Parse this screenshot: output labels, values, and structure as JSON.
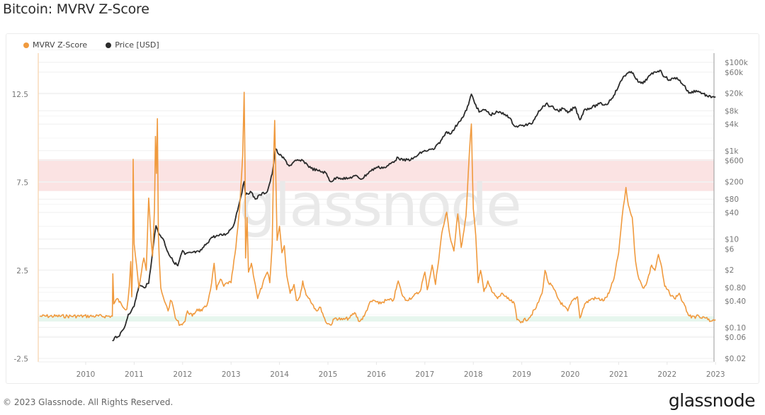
{
  "page": {
    "title": "Bitcoin: MVRV Z-Score",
    "copyright": "© 2023 Glassnode. All Rights Reserved.",
    "logo": "glassnode",
    "watermark": "glassnode"
  },
  "legend": [
    {
      "label": "MVRV Z-Score",
      "color": "#f09a3e"
    },
    {
      "label": "Price [USD]",
      "color": "#2b2b2b"
    }
  ],
  "chart_data": {
    "type": "line",
    "title": "Bitcoin: MVRV Z-Score",
    "xlabel": "",
    "ylabel_left": "MVRV Z-Score",
    "ylabel_right": "Price [USD] (log scale)",
    "x_ticks": [
      "2010",
      "2011",
      "2012",
      "2013",
      "2014",
      "2015",
      "2016",
      "2017",
      "2018",
      "2019",
      "2020",
      "2021",
      "2022",
      "2023"
    ],
    "y_left_ticks": [
      "12.5",
      "7.5",
      "2.5",
      "-2.5"
    ],
    "y_left_range": [
      -2.5,
      15
    ],
    "y_right_ticks": [
      "$100k",
      "$60k",
      "$20k",
      "$8k",
      "$4k",
      "$1k",
      "$600",
      "$200",
      "$80",
      "$40",
      "$10",
      "$6",
      "$2",
      "$0.80",
      "$0.40",
      "$0.10",
      "$0.06",
      "$0.02"
    ],
    "y_right_range": [
      0.02,
      100000
    ],
    "grid": true,
    "legend_position": "top-left",
    "bands": [
      {
        "name": "overvalued-zone",
        "z_from": 7.0,
        "z_to": 8.8,
        "color": "#fbe3e3"
      },
      {
        "name": "undervalued-zone",
        "z_from": -0.4,
        "z_to": -0.1,
        "color": "#e6f6ee"
      }
    ],
    "series": [
      {
        "name": "MVRV Z-Score",
        "axis": "left",
        "color": "#f09a3e",
        "points": [
          [
            2009.05,
            -0.1
          ],
          [
            2010.55,
            -0.1
          ],
          [
            2010.56,
            2.3
          ],
          [
            2010.58,
            0.6
          ],
          [
            2010.65,
            0.9
          ],
          [
            2010.75,
            0.5
          ],
          [
            2010.85,
            0.3
          ],
          [
            2010.9,
            1.6
          ],
          [
            2010.93,
            3.0
          ],
          [
            2010.95,
            1.0
          ],
          [
            2010.97,
            3.0
          ],
          [
            2010.98,
            8.8
          ],
          [
            2011.0,
            4.0
          ],
          [
            2011.05,
            2.8
          ],
          [
            2011.1,
            1.5
          ],
          [
            2011.15,
            2.4
          ],
          [
            2011.2,
            3.2
          ],
          [
            2011.25,
            2.5
          ],
          [
            2011.3,
            6.6
          ],
          [
            2011.35,
            4.2
          ],
          [
            2011.38,
            3.3
          ],
          [
            2011.42,
            6.0
          ],
          [
            2011.44,
            10.1
          ],
          [
            2011.46,
            8.0
          ],
          [
            2011.48,
            11.1
          ],
          [
            2011.5,
            4.5
          ],
          [
            2011.52,
            3.0
          ],
          [
            2011.55,
            1.5
          ],
          [
            2011.6,
            1.0
          ],
          [
            2011.65,
            0.6
          ],
          [
            2011.7,
            0.2
          ],
          [
            2011.75,
            0.8
          ],
          [
            2011.8,
            0.5
          ],
          [
            2011.85,
            -0.2
          ],
          [
            2011.95,
            -0.6
          ],
          [
            2012.05,
            -0.4
          ],
          [
            2012.1,
            0.2
          ],
          [
            2012.2,
            -0.1
          ],
          [
            2012.3,
            0.3
          ],
          [
            2012.4,
            0.2
          ],
          [
            2012.5,
            0.5
          ],
          [
            2012.55,
            1.1
          ],
          [
            2012.6,
            1.8
          ],
          [
            2012.65,
            2.9
          ],
          [
            2012.7,
            1.4
          ],
          [
            2012.78,
            2.0
          ],
          [
            2012.85,
            1.6
          ],
          [
            2012.92,
            1.8
          ],
          [
            2013.0,
            1.8
          ],
          [
            2013.1,
            3.8
          ],
          [
            2013.18,
            6.1
          ],
          [
            2013.24,
            9.0
          ],
          [
            2013.27,
            12.6
          ],
          [
            2013.29,
            8.0
          ],
          [
            2013.3,
            3.2
          ],
          [
            2013.33,
            5.5
          ],
          [
            2013.36,
            2.4
          ],
          [
            2013.42,
            2.9
          ],
          [
            2013.5,
            1.7
          ],
          [
            2013.55,
            0.9
          ],
          [
            2013.65,
            1.7
          ],
          [
            2013.75,
            2.4
          ],
          [
            2013.8,
            1.8
          ],
          [
            2013.85,
            4.0
          ],
          [
            2013.88,
            9.0
          ],
          [
            2013.9,
            11.0
          ],
          [
            2013.93,
            7.0
          ],
          [
            2013.95,
            4.2
          ],
          [
            2014.0,
            5.0
          ],
          [
            2014.05,
            3.5
          ],
          [
            2014.1,
            3.9
          ],
          [
            2014.15,
            2.2
          ],
          [
            2014.22,
            1.2
          ],
          [
            2014.3,
            1.7
          ],
          [
            2014.35,
            0.8
          ],
          [
            2014.42,
            1.0
          ],
          [
            2014.48,
            1.9
          ],
          [
            2014.55,
            1.1
          ],
          [
            2014.62,
            0.9
          ],
          [
            2014.7,
            0.5
          ],
          [
            2014.78,
            0.2
          ],
          [
            2014.85,
            0.4
          ],
          [
            2014.95,
            -0.4
          ],
          [
            2015.05,
            -0.6
          ],
          [
            2015.15,
            -0.2
          ],
          [
            2015.3,
            -0.3
          ],
          [
            2015.45,
            -0.2
          ],
          [
            2015.55,
            0.1
          ],
          [
            2015.65,
            -0.4
          ],
          [
            2015.75,
            -0.1
          ],
          [
            2015.85,
            0.6
          ],
          [
            2015.95,
            0.8
          ],
          [
            2016.05,
            0.6
          ],
          [
            2016.2,
            0.8
          ],
          [
            2016.35,
            0.8
          ],
          [
            2016.45,
            1.9
          ],
          [
            2016.52,
            1.2
          ],
          [
            2016.6,
            0.8
          ],
          [
            2016.75,
            1.0
          ],
          [
            2016.9,
            1.3
          ],
          [
            2017.0,
            2.4
          ],
          [
            2017.05,
            1.4
          ],
          [
            2017.15,
            2.8
          ],
          [
            2017.22,
            1.7
          ],
          [
            2017.35,
            4.6
          ],
          [
            2017.45,
            5.8
          ],
          [
            2017.52,
            4.4
          ],
          [
            2017.6,
            3.6
          ],
          [
            2017.68,
            5.7
          ],
          [
            2017.75,
            3.8
          ],
          [
            2017.85,
            5.6
          ],
          [
            2017.92,
            9.2
          ],
          [
            2017.96,
            10.8
          ],
          [
            2018.0,
            6.0
          ],
          [
            2018.05,
            4.5
          ],
          [
            2018.1,
            1.8
          ],
          [
            2018.15,
            2.5
          ],
          [
            2018.22,
            1.3
          ],
          [
            2018.3,
            1.9
          ],
          [
            2018.38,
            1.3
          ],
          [
            2018.5,
            0.9
          ],
          [
            2018.6,
            1.2
          ],
          [
            2018.7,
            0.9
          ],
          [
            2018.85,
            0.6
          ],
          [
            2018.9,
            -0.3
          ],
          [
            2019.0,
            -0.4
          ],
          [
            2019.15,
            -0.2
          ],
          [
            2019.3,
            0.4
          ],
          [
            2019.42,
            1.2
          ],
          [
            2019.48,
            2.5
          ],
          [
            2019.55,
            1.8
          ],
          [
            2019.65,
            1.5
          ],
          [
            2019.75,
            0.9
          ],
          [
            2019.85,
            0.5
          ],
          [
            2019.95,
            0.2
          ],
          [
            2020.05,
            0.8
          ],
          [
            2020.15,
            1.0
          ],
          [
            2020.2,
            -0.2
          ],
          [
            2020.3,
            0.6
          ],
          [
            2020.45,
            0.9
          ],
          [
            2020.55,
            0.9
          ],
          [
            2020.7,
            0.8
          ],
          [
            2020.8,
            1.2
          ],
          [
            2020.9,
            2.0
          ],
          [
            2021.0,
            3.5
          ],
          [
            2021.07,
            5.5
          ],
          [
            2021.12,
            6.5
          ],
          [
            2021.15,
            7.2
          ],
          [
            2021.2,
            6.2
          ],
          [
            2021.28,
            5.5
          ],
          [
            2021.35,
            3.0
          ],
          [
            2021.42,
            2.0
          ],
          [
            2021.5,
            1.5
          ],
          [
            2021.58,
            1.8
          ],
          [
            2021.68,
            2.8
          ],
          [
            2021.75,
            2.5
          ],
          [
            2021.82,
            3.4
          ],
          [
            2021.87,
            2.9
          ],
          [
            2021.95,
            1.6
          ],
          [
            2022.05,
            1.2
          ],
          [
            2022.15,
            0.9
          ],
          [
            2022.25,
            1.2
          ],
          [
            2022.32,
            0.7
          ],
          [
            2022.42,
            0.1
          ],
          [
            2022.5,
            -0.2
          ],
          [
            2022.6,
            -0.1
          ],
          [
            2022.7,
            -0.2
          ],
          [
            2022.8,
            -0.2
          ],
          [
            2022.88,
            -0.4
          ],
          [
            2022.95,
            -0.3
          ],
          [
            2023.0,
            -0.3
          ]
        ]
      },
      {
        "name": "Price [USD]",
        "axis": "right",
        "color": "#2b2b2b",
        "points": [
          [
            2010.55,
            0.05
          ],
          [
            2010.6,
            0.06
          ],
          [
            2010.7,
            0.065
          ],
          [
            2010.8,
            0.1
          ],
          [
            2010.88,
            0.2
          ],
          [
            2010.95,
            0.25
          ],
          [
            2011.0,
            0.3
          ],
          [
            2011.1,
            0.9
          ],
          [
            2011.2,
            0.8
          ],
          [
            2011.3,
            1.0
          ],
          [
            2011.4,
            8.0
          ],
          [
            2011.45,
            20
          ],
          [
            2011.5,
            14
          ],
          [
            2011.6,
            10
          ],
          [
            2011.7,
            5
          ],
          [
            2011.8,
            3.2
          ],
          [
            2011.9,
            2.5
          ],
          [
            2012.0,
            5.5
          ],
          [
            2012.05,
            4.5
          ],
          [
            2012.2,
            5.0
          ],
          [
            2012.35,
            5.1
          ],
          [
            2012.5,
            8.0
          ],
          [
            2012.6,
            11
          ],
          [
            2012.75,
            12
          ],
          [
            2012.9,
            13
          ],
          [
            2013.05,
            20
          ],
          [
            2013.2,
            90
          ],
          [
            2013.27,
            200
          ],
          [
            2013.3,
            100
          ],
          [
            2013.4,
            120
          ],
          [
            2013.5,
            80
          ],
          [
            2013.6,
            100
          ],
          [
            2013.75,
            120
          ],
          [
            2013.85,
            300
          ],
          [
            2013.92,
            1100
          ],
          [
            2014.0,
            800
          ],
          [
            2014.1,
            650
          ],
          [
            2014.2,
            450
          ],
          [
            2014.35,
            600
          ],
          [
            2014.5,
            580
          ],
          [
            2014.65,
            400
          ],
          [
            2014.8,
            350
          ],
          [
            2014.95,
            320
          ],
          [
            2015.05,
            200
          ],
          [
            2015.2,
            250
          ],
          [
            2015.4,
            230
          ],
          [
            2015.55,
            270
          ],
          [
            2015.7,
            230
          ],
          [
            2015.85,
            330
          ],
          [
            2016.0,
            420
          ],
          [
            2016.2,
            420
          ],
          [
            2016.45,
            700
          ],
          [
            2016.55,
            600
          ],
          [
            2016.75,
            650
          ],
          [
            2016.95,
            950
          ],
          [
            2017.2,
            1100
          ],
          [
            2017.35,
            1800
          ],
          [
            2017.45,
            2700
          ],
          [
            2017.55,
            2500
          ],
          [
            2017.7,
            4500
          ],
          [
            2017.8,
            6000
          ],
          [
            2017.9,
            11000
          ],
          [
            2017.96,
            19000
          ],
          [
            2018.05,
            11000
          ],
          [
            2018.12,
            7500
          ],
          [
            2018.25,
            8500
          ],
          [
            2018.35,
            6500
          ],
          [
            2018.5,
            7500
          ],
          [
            2018.7,
            6400
          ],
          [
            2018.87,
            3500
          ],
          [
            2019.0,
            3700
          ],
          [
            2019.2,
            4000
          ],
          [
            2019.35,
            8000
          ],
          [
            2019.5,
            11500
          ],
          [
            2019.6,
            10000
          ],
          [
            2019.75,
            8000
          ],
          [
            2019.85,
            9000
          ],
          [
            2019.95,
            7200
          ],
          [
            2020.1,
            9800
          ],
          [
            2020.2,
            5000
          ],
          [
            2020.3,
            8700
          ],
          [
            2020.45,
            9500
          ],
          [
            2020.6,
            11500
          ],
          [
            2020.75,
            11000
          ],
          [
            2020.9,
            18000
          ],
          [
            2021.0,
            29000
          ],
          [
            2021.1,
            48000
          ],
          [
            2021.2,
            58000
          ],
          [
            2021.3,
            57000
          ],
          [
            2021.4,
            36000
          ],
          [
            2021.5,
            33000
          ],
          [
            2021.6,
            45000
          ],
          [
            2021.75,
            61000
          ],
          [
            2021.85,
            66000
          ],
          [
            2021.95,
            47000
          ],
          [
            2022.05,
            40000
          ],
          [
            2022.2,
            45000
          ],
          [
            2022.35,
            30000
          ],
          [
            2022.45,
            20000
          ],
          [
            2022.6,
            23000
          ],
          [
            2022.75,
            19500
          ],
          [
            2022.85,
            16500
          ],
          [
            2022.95,
            16800
          ],
          [
            2023.0,
            16600
          ]
        ]
      }
    ]
  }
}
